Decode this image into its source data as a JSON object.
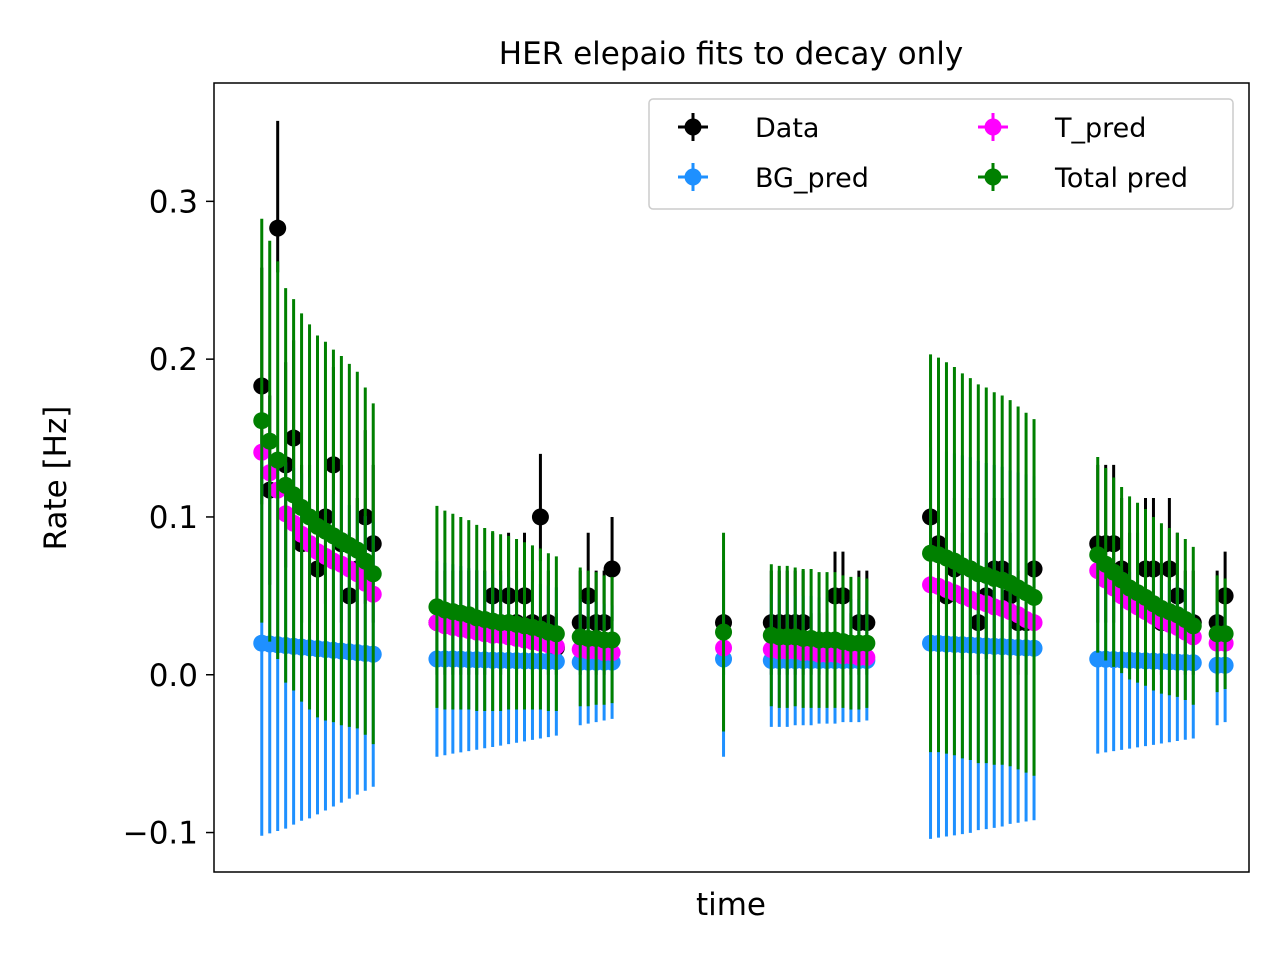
{
  "chart_data": {
    "type": "scatter",
    "title": "HER elepaio fits to decay only",
    "xlabel": "time",
    "ylabel": "Rate [Hz]",
    "ylim": [
      -0.125,
      0.375
    ],
    "yticks": [
      -0.1,
      0.0,
      0.1,
      0.2,
      0.3
    ],
    "ytick_labels": [
      "−0.1",
      "0.0",
      "0.1",
      "0.2",
      "0.3"
    ],
    "x_ticks_shown": false,
    "xlim": [
      0,
      130
    ],
    "legend": {
      "placement": "top-right",
      "columns": 2,
      "order": [
        "Data",
        "T_pred",
        "BG_pred",
        "Total pred"
      ]
    },
    "series": [
      {
        "name": "Data",
        "color": "#000000",
        "x": [
          6,
          7,
          8,
          9,
          10,
          11,
          12,
          13,
          14,
          15,
          16,
          17,
          18,
          19,
          20,
          28,
          29,
          30,
          31,
          32,
          33,
          34,
          35,
          36,
          37,
          38,
          39,
          40,
          41,
          42,
          43,
          46,
          47,
          48,
          49,
          50,
          64,
          70,
          71,
          72,
          73,
          74,
          75,
          76,
          77,
          78,
          79,
          80,
          81,
          82,
          90,
          91,
          92,
          93,
          94,
          95,
          96,
          97,
          98,
          99,
          100,
          101,
          102,
          103,
          111,
          112,
          113,
          114,
          115,
          116,
          117,
          118,
          119,
          120,
          121,
          122,
          123,
          126,
          127
        ],
        "y": [
          0.183,
          0.117,
          0.283,
          0.133,
          0.15,
          0.083,
          0.083,
          0.067,
          0.1,
          0.133,
          0.083,
          0.05,
          0.067,
          0.1,
          0.083,
          0.033,
          0.033,
          0.033,
          0.033,
          0.033,
          0.033,
          0.033,
          0.05,
          0.033,
          0.05,
          0.033,
          0.05,
          0.033,
          0.1,
          0.033,
          0.017,
          0.033,
          0.05,
          0.033,
          0.033,
          0.067,
          0.033,
          0.033,
          0.033,
          0.033,
          0.033,
          0.033,
          0.017,
          0.017,
          0.017,
          0.05,
          0.05,
          0.017,
          0.033,
          0.033,
          0.1,
          0.083,
          0.05,
          0.067,
          0.05,
          0.067,
          0.033,
          0.05,
          0.067,
          0.067,
          0.05,
          0.033,
          0.033,
          0.067,
          0.083,
          0.083,
          0.083,
          0.067,
          0.05,
          0.05,
          0.067,
          0.067,
          0.033,
          0.067,
          0.05,
          0.033,
          0.033,
          0.033,
          0.05
        ],
        "yerr_hi": [
          0.075,
          0.06,
          0.068,
          0.065,
          0.062,
          0.05,
          0.05,
          0.045,
          0.055,
          0.062,
          0.05,
          0.04,
          0.045,
          0.055,
          0.05,
          0.033,
          0.033,
          0.033,
          0.033,
          0.033,
          0.033,
          0.033,
          0.04,
          0.033,
          0.04,
          0.033,
          0.04,
          0.033,
          0.04,
          0.033,
          0.022,
          0.033,
          0.04,
          0.033,
          0.033,
          0.033,
          0.033,
          0.033,
          0.033,
          0.033,
          0.033,
          0.033,
          0.022,
          0.022,
          0.022,
          0.028,
          0.028,
          0.022,
          0.033,
          0.033,
          0.055,
          0.05,
          0.04,
          0.045,
          0.04,
          0.045,
          0.033,
          0.04,
          0.045,
          0.045,
          0.04,
          0.033,
          0.033,
          0.045,
          0.05,
          0.05,
          0.05,
          0.045,
          0.04,
          0.04,
          0.045,
          0.045,
          0.033,
          0.045,
          0.04,
          0.033,
          0.033,
          0.033,
          0.028
        ],
        "yerr_lo": [
          0.075,
          0.06,
          0.028,
          0.065,
          0.062,
          0.05,
          0.05,
          0.045,
          0.055,
          0.062,
          0.05,
          0.04,
          0.045,
          0.055,
          0.05,
          0.033,
          0.033,
          0.033,
          0.033,
          0.033,
          0.033,
          0.033,
          0.04,
          0.033,
          0.04,
          0.033,
          0.04,
          0.033,
          0.028,
          0.033,
          0.017,
          0.033,
          0.04,
          0.033,
          0.033,
          0.033,
          0.033,
          0.033,
          0.033,
          0.033,
          0.033,
          0.033,
          0.017,
          0.017,
          0.017,
          0.028,
          0.028,
          0.017,
          0.033,
          0.033,
          0.055,
          0.05,
          0.04,
          0.045,
          0.04,
          0.045,
          0.033,
          0.04,
          0.045,
          0.045,
          0.04,
          0.033,
          0.033,
          0.045,
          0.05,
          0.05,
          0.05,
          0.045,
          0.04,
          0.04,
          0.045,
          0.045,
          0.033,
          0.045,
          0.04,
          0.033,
          0.033,
          0.033,
          0.028
        ]
      },
      {
        "name": "BG_pred",
        "color": "#1e90ff",
        "x": [
          6,
          7,
          8,
          9,
          10,
          11,
          12,
          13,
          14,
          15,
          16,
          17,
          18,
          19,
          20,
          28,
          29,
          30,
          31,
          32,
          33,
          34,
          35,
          36,
          37,
          38,
          39,
          40,
          41,
          42,
          43,
          46,
          47,
          48,
          49,
          50,
          64,
          70,
          71,
          72,
          73,
          74,
          75,
          76,
          77,
          78,
          79,
          80,
          81,
          82,
          90,
          91,
          92,
          93,
          94,
          95,
          96,
          97,
          98,
          99,
          100,
          101,
          102,
          103,
          111,
          112,
          113,
          114,
          115,
          116,
          117,
          118,
          119,
          120,
          121,
          122,
          123,
          126,
          127
        ],
        "y": [
          0.02,
          0.0195,
          0.019,
          0.0185,
          0.018,
          0.0175,
          0.017,
          0.0165,
          0.016,
          0.0155,
          0.015,
          0.0145,
          0.014,
          0.0135,
          0.013,
          0.01,
          0.01,
          0.01,
          0.0098,
          0.0096,
          0.0095,
          0.0094,
          0.0092,
          0.0091,
          0.009,
          0.0089,
          0.0088,
          0.0087,
          0.0086,
          0.0085,
          0.0084,
          0.008,
          0.008,
          0.008,
          0.008,
          0.008,
          0.01,
          0.009,
          0.009,
          0.009,
          0.009,
          0.009,
          0.009,
          0.009,
          0.009,
          0.009,
          0.009,
          0.009,
          0.009,
          0.009,
          0.02,
          0.0198,
          0.0195,
          0.0192,
          0.019,
          0.0188,
          0.0185,
          0.0182,
          0.018,
          0.0178,
          0.0175,
          0.0172,
          0.017,
          0.0168,
          0.01,
          0.0098,
          0.0096,
          0.0094,
          0.0092,
          0.009,
          0.0088,
          0.0086,
          0.0084,
          0.0082,
          0.008,
          0.0078,
          0.0076,
          0.006,
          0.006
        ],
        "yerr": [
          0.122,
          0.12,
          0.118,
          0.116,
          0.113,
          0.11,
          0.108,
          0.105,
          0.102,
          0.099,
          0.096,
          0.093,
          0.09,
          0.087,
          0.084,
          0.062,
          0.061,
          0.06,
          0.059,
          0.058,
          0.057,
          0.056,
          0.055,
          0.054,
          0.053,
          0.052,
          0.051,
          0.05,
          0.049,
          0.048,
          0.047,
          0.04,
          0.039,
          0.038,
          0.037,
          0.036,
          0.062,
          0.042,
          0.042,
          0.042,
          0.041,
          0.041,
          0.041,
          0.04,
          0.04,
          0.04,
          0.039,
          0.039,
          0.039,
          0.038,
          0.124,
          0.123,
          0.122,
          0.121,
          0.12,
          0.119,
          0.117,
          0.116,
          0.115,
          0.114,
          0.112,
          0.111,
          0.11,
          0.109,
          0.06,
          0.059,
          0.058,
          0.057,
          0.056,
          0.055,
          0.054,
          0.053,
          0.052,
          0.051,
          0.05,
          0.049,
          0.048,
          0.038,
          0.036
        ]
      },
      {
        "name": "T_pred",
        "color": "#ff00ff",
        "x": [
          6,
          7,
          8,
          9,
          10,
          11,
          12,
          13,
          14,
          15,
          16,
          17,
          18,
          19,
          20,
          28,
          29,
          30,
          31,
          32,
          33,
          34,
          35,
          36,
          37,
          38,
          39,
          40,
          41,
          42,
          43,
          46,
          47,
          48,
          49,
          50,
          64,
          70,
          71,
          72,
          73,
          74,
          75,
          76,
          77,
          78,
          79,
          80,
          81,
          82,
          90,
          91,
          92,
          93,
          94,
          95,
          96,
          97,
          98,
          99,
          100,
          101,
          102,
          103,
          111,
          112,
          113,
          114,
          115,
          116,
          117,
          118,
          119,
          120,
          121,
          122,
          123,
          126,
          127
        ],
        "y": [
          0.141,
          0.128,
          0.117,
          0.102,
          0.096,
          0.089,
          0.083,
          0.078,
          0.075,
          0.072,
          0.07,
          0.067,
          0.064,
          0.058,
          0.051,
          0.033,
          0.031,
          0.03,
          0.029,
          0.028,
          0.027,
          0.026,
          0.025,
          0.025,
          0.024,
          0.023,
          0.022,
          0.021,
          0.02,
          0.019,
          0.018,
          0.016,
          0.015,
          0.015,
          0.014,
          0.014,
          0.017,
          0.016,
          0.015,
          0.015,
          0.015,
          0.014,
          0.014,
          0.013,
          0.013,
          0.013,
          0.012,
          0.012,
          0.011,
          0.011,
          0.057,
          0.056,
          0.054,
          0.052,
          0.05,
          0.048,
          0.046,
          0.045,
          0.043,
          0.042,
          0.04,
          0.038,
          0.035,
          0.033,
          0.066,
          0.06,
          0.055,
          0.05,
          0.046,
          0.043,
          0.04,
          0.037,
          0.034,
          0.032,
          0.03,
          0.027,
          0.024,
          0.02,
          0.02
        ],
        "yerr": [
          0,
          0,
          0,
          0,
          0,
          0,
          0,
          0,
          0,
          0,
          0,
          0,
          0,
          0,
          0,
          0,
          0,
          0,
          0,
          0,
          0,
          0,
          0,
          0,
          0,
          0,
          0,
          0,
          0,
          0,
          0,
          0,
          0,
          0,
          0,
          0,
          0,
          0,
          0,
          0,
          0,
          0,
          0,
          0,
          0,
          0,
          0,
          0,
          0,
          0,
          0,
          0,
          0,
          0,
          0,
          0,
          0,
          0,
          0,
          0,
          0,
          0,
          0,
          0,
          0,
          0,
          0,
          0,
          0,
          0,
          0,
          0,
          0,
          0,
          0,
          0,
          0,
          0,
          0
        ]
      },
      {
        "name": "Total pred",
        "color": "#008000",
        "x": [
          6,
          7,
          8,
          9,
          10,
          11,
          12,
          13,
          14,
          15,
          16,
          17,
          18,
          19,
          20,
          28,
          29,
          30,
          31,
          32,
          33,
          34,
          35,
          36,
          37,
          38,
          39,
          40,
          41,
          42,
          43,
          46,
          47,
          48,
          49,
          50,
          64,
          70,
          71,
          72,
          73,
          74,
          75,
          76,
          77,
          78,
          79,
          80,
          81,
          82,
          90,
          91,
          92,
          93,
          94,
          95,
          96,
          97,
          98,
          99,
          100,
          101,
          102,
          103,
          111,
          112,
          113,
          114,
          115,
          116,
          117,
          118,
          119,
          120,
          121,
          122,
          123,
          126,
          127
        ],
        "y": [
          0.161,
          0.148,
          0.136,
          0.12,
          0.114,
          0.106,
          0.1,
          0.094,
          0.091,
          0.088,
          0.085,
          0.082,
          0.079,
          0.072,
          0.064,
          0.043,
          0.041,
          0.04,
          0.039,
          0.038,
          0.036,
          0.035,
          0.034,
          0.033,
          0.033,
          0.032,
          0.031,
          0.03,
          0.029,
          0.027,
          0.026,
          0.024,
          0.023,
          0.023,
          0.022,
          0.022,
          0.027,
          0.025,
          0.024,
          0.024,
          0.024,
          0.023,
          0.023,
          0.022,
          0.022,
          0.022,
          0.021,
          0.02,
          0.02,
          0.02,
          0.077,
          0.076,
          0.074,
          0.072,
          0.069,
          0.067,
          0.064,
          0.063,
          0.061,
          0.06,
          0.058,
          0.055,
          0.052,
          0.049,
          0.076,
          0.07,
          0.065,
          0.06,
          0.055,
          0.052,
          0.049,
          0.045,
          0.042,
          0.04,
          0.038,
          0.035,
          0.031,
          0.026,
          0.026
        ],
        "yerr": [
          0.128,
          0.127,
          0.126,
          0.125,
          0.124,
          0.123,
          0.122,
          0.121,
          0.12,
          0.118,
          0.117,
          0.115,
          0.113,
          0.11,
          0.108,
          0.064,
          0.063,
          0.062,
          0.061,
          0.06,
          0.059,
          0.058,
          0.057,
          0.056,
          0.055,
          0.054,
          0.053,
          0.052,
          0.051,
          0.05,
          0.049,
          0.044,
          0.043,
          0.042,
          0.041,
          0.04,
          0.063,
          0.045,
          0.045,
          0.045,
          0.044,
          0.044,
          0.044,
          0.043,
          0.043,
          0.043,
          0.042,
          0.042,
          0.042,
          0.041,
          0.126,
          0.125,
          0.124,
          0.123,
          0.122,
          0.121,
          0.12,
          0.119,
          0.118,
          0.117,
          0.116,
          0.115,
          0.114,
          0.113,
          0.062,
          0.061,
          0.06,
          0.059,
          0.058,
          0.057,
          0.056,
          0.055,
          0.054,
          0.053,
          0.052,
          0.051,
          0.05,
          0.037,
          0.035
        ]
      }
    ]
  }
}
